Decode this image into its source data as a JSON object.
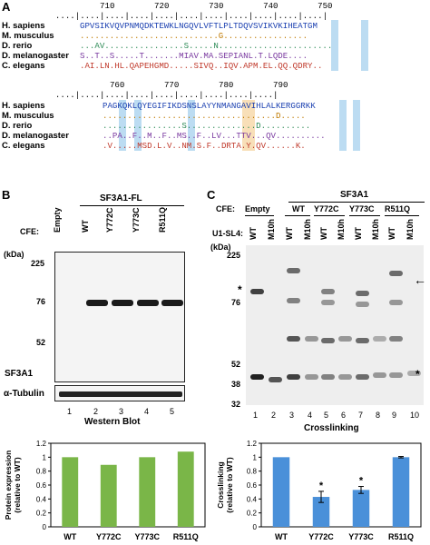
{
  "panelA": {
    "letter": "A",
    "block1": {
      "ruler": "           710        720        730        740        750",
      "dots": "  ....|....|....|....|....|....|....|....|....|....|....|",
      "species": [
        "H. sapiens",
        "M. musculus",
        "D. rerio",
        "D. melanogaster",
        "C. elegans"
      ],
      "sequences": [
        "GPVSIKVQVPNMQDKTEWKLNGQVLVFTLPLTDQVSVIKVKIHEATGM",
        "............................G.................",
        "...AV................S.....N.......................",
        "S..T..S.....T.......MIAV.MA.SEPIANL.T.LQDE....",
        ".AI.LN.HL.QAPEHGMD.....SIVQ..IQV.APM.EL.QQ.QDRY.."
      ],
      "colors": [
        "#1a3fb0",
        "#333333",
        "#2e8b57",
        "#7a3aa0",
        "#c0392b"
      ]
    },
    "block2": {
      "ruler": "             760        770        780        790",
      "dots": "  ....|....|....|....|....|....|....|....|....|",
      "sequences": [
        "PAGKQKLQYEGIFIKDSNSLAYYNMANGAVIHLALKERGGRKK",
        "...................................D.....",
        "................S..............D..........",
        "..PA..F..M..F..MS..F..LV...TTV...QV..........",
        ".V.....MSD.L.V..NM.S.F..DRTA.Y.QV......K."
      ]
    }
  },
  "panelB": {
    "letter": "B",
    "header": "SF3A1-FL",
    "cfe_label": "CFE:",
    "lanes": [
      "Empty",
      "WT",
      "Y772C",
      "Y773C",
      "R511Q"
    ],
    "kda_label": "(kDa)",
    "markers": [
      "225",
      "76",
      "52"
    ],
    "band_label": "SF3A1",
    "tubulin_label": "α-Tubulin",
    "lane_numbers": [
      "1",
      "2",
      "3",
      "4",
      "5"
    ],
    "caption": "Western Blot"
  },
  "panelC": {
    "letter": "C",
    "header": "SF3A1",
    "cfe_label": "CFE:",
    "groups": [
      "Empty",
      "WT",
      "Y772C",
      "Y773C",
      "R511Q"
    ],
    "u1_label": "U1-SL4:",
    "lane_labels": [
      "WT",
      "M10h",
      "WT",
      "M10h",
      "WT",
      "M10h",
      "WT",
      "M10h",
      "WT",
      "M10h"
    ],
    "kda_label": "(kDa)",
    "markers": [
      "225",
      "76",
      "52",
      "38",
      "32"
    ],
    "lane_numbers": [
      "1",
      "2",
      "3",
      "4",
      "5",
      "6",
      "7",
      "8",
      "9",
      "10"
    ],
    "caption": "Crosslinking",
    "asterisk": "*"
  },
  "chartB": {
    "chart_data": {
      "type": "bar",
      "categories": [
        "WT",
        "Y772C",
        "Y773C",
        "R511Q"
      ],
      "values": [
        1.0,
        0.89,
        1.0,
        1.08
      ],
      "ylabel": "Protein expression (relative to WT)",
      "ylim": [
        0,
        1.2
      ],
      "yticks": [
        "0",
        "0.2",
        "0.4",
        "0.6",
        "0.8",
        "1",
        "1.2"
      ],
      "color": "#7ab648"
    }
  },
  "chartC": {
    "chart_data": {
      "type": "bar",
      "categories": [
        "WT",
        "Y772C",
        "Y773C",
        "R511Q"
      ],
      "values": [
        1.0,
        0.43,
        0.53,
        1.0
      ],
      "errors": [
        0,
        0.08,
        0.05,
        0.01
      ],
      "significance": [
        "",
        "*",
        "*",
        ""
      ],
      "ylabel": "Crosslinking (relative to WT)",
      "ylim": [
        0,
        1.2
      ],
      "yticks": [
        "0",
        "0.2",
        "0.4",
        "0.6",
        "0.8",
        "1",
        "1.2"
      ],
      "color": "#4a90d9"
    }
  }
}
